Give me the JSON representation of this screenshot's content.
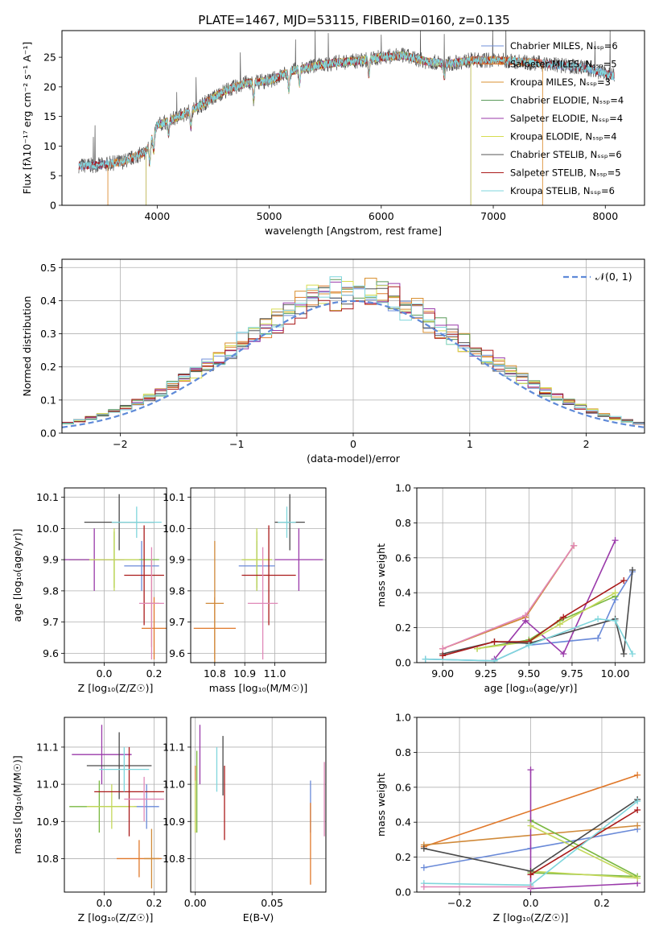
{
  "figure_title": "PLATE=1467, MJD=53115, FIBERID=0160, z=0.135",
  "colors": {
    "spec": [
      "#6f8fd8",
      "#dd7a2a",
      "#d99030",
      "#5a9a5a",
      "#9a3aaa",
      "#d6dc50",
      "#555555",
      "#aa1a1a",
      "#7fd6dc"
    ],
    "err": [
      "#6a8ad8",
      "#e0782a",
      "#d08a3a",
      "#7ab840",
      "#9a3aaa",
      "#c4d85a",
      "#4a4a4a",
      "#aa1a1a",
      "#7fd6dc",
      "#e088b8"
    ],
    "gauss": "#5f8ad8"
  },
  "chart_data": [
    {
      "id": "spectrum",
      "type": "line",
      "xlabel": "wavelength [Angstrom, rest frame]",
      "ylabel": "Flux [fλ10⁻¹⁷ erg cm⁻² s⁻¹ A⁻¹]",
      "xlim": [
        3150,
        8350
      ],
      "ylim": [
        0,
        29.5
      ],
      "xticks": [
        4000,
        5000,
        6000,
        7000,
        8000
      ],
      "yticks": [
        0,
        5,
        10,
        15,
        20,
        25
      ],
      "legend_position": "top-right",
      "legend": [
        "Chabrier MILES, Nₛₛₚ=6",
        "Salpeter MILES, Nₛₛₚ=5",
        "Kroupa MILES, Nₛₛₚ=3",
        "Chabrier ELODIE, Nₛₛₚ=4",
        "Salpeter ELODIE, Nₛₛₚ=4",
        "Kroupa ELODIE, Nₛₛₚ=4",
        "Chabrier STELIB, Nₛₛₚ=6",
        "Salpeter STELIB, Nₛₛₚ=5",
        "Kroupa STELIB, Nₛₛₚ=6"
      ],
      "continuum": {
        "x": [
          3330,
          3500,
          3700,
          3900,
          4000,
          4200,
          4400,
          4600,
          4800,
          5000,
          5200,
          5400,
          5600,
          5800,
          6000,
          6200,
          6400,
          6600,
          6800,
          7000,
          7200,
          7400,
          7600,
          7800,
          8080
        ],
        "y": [
          6.7,
          6.8,
          7.4,
          9.0,
          13.5,
          15.0,
          17.0,
          19.3,
          20.7,
          21.0,
          22.7,
          23.5,
          24.1,
          24.4,
          25.0,
          25.3,
          24.3,
          23.9,
          24.5,
          24.5,
          24.3,
          24.0,
          23.6,
          23.3,
          21.8
        ]
      },
      "model_ranges": [
        [
          3300,
          8080
        ],
        [
          3560,
          7440
        ],
        [
          3560,
          7440
        ],
        [
          3900,
          6800
        ],
        [
          3900,
          6800
        ],
        [
          3900,
          6800
        ],
        [
          3300,
          8080
        ],
        [
          3300,
          8080
        ],
        [
          3300,
          8080
        ]
      ]
    },
    {
      "id": "residuals",
      "type": "histogram",
      "xlabel": "(data-model)/error",
      "ylabel": "Normed distribution",
      "xlim": [
        -2.5,
        2.5
      ],
      "ylim": [
        0,
        0.525
      ],
      "xticks": [
        -2,
        -1,
        0,
        1,
        2
      ],
      "yticks": [
        0.0,
        0.1,
        0.2,
        0.3,
        0.4,
        0.5
      ],
      "legend": [
        "𝒩(0, 1)"
      ],
      "legend_position": "top-right",
      "bin_width": 0.1,
      "gaussian": {
        "mean": 0,
        "sigma": 1
      }
    },
    {
      "id": "age-vs-Z",
      "type": "errorbar",
      "xlabel": "Z [log₁₀(Z/Z☉)]",
      "ylabel": "age  [log₁₀(age/yr)]",
      "xlim": [
        -0.16,
        0.25
      ],
      "ylim": [
        9.57,
        10.13
      ],
      "xticks": [
        0.0,
        0.2
      ],
      "yticks": [
        9.6,
        9.7,
        9.8,
        9.9,
        10.0,
        10.1
      ],
      "points": [
        {
          "x": 0.15,
          "xerr": 0.07,
          "y": 9.88,
          "yerr": 0.08
        },
        {
          "x": 0.2,
          "xerr": 0.05,
          "y": 9.68,
          "yerr": 0.1
        },
        {
          "x": 0.19,
          "xerr": 0.03,
          "y": 9.76,
          "yerr": 0.14
        },
        {
          "x": 0.04,
          "xerr": 0.18,
          "y": 9.9,
          "yerr": 0.09
        },
        {
          "x": -0.04,
          "xerr": 0.12,
          "y": 9.9,
          "yerr": 0.1
        },
        {
          "x": 0.04,
          "xerr": 0.1,
          "y": 9.9,
          "yerr": 0.1
        },
        {
          "x": 0.06,
          "xerr": 0.14,
          "y": 10.02,
          "yerr": 0.09
        },
        {
          "x": 0.16,
          "xerr": 0.08,
          "y": 9.85,
          "yerr": 0.16
        },
        {
          "x": 0.13,
          "xerr": 0.1,
          "y": 10.02,
          "yerr": 0.05
        },
        {
          "x": 0.19,
          "xerr": 0.05,
          "y": 9.76,
          "yerr": 0.18
        }
      ]
    },
    {
      "id": "age-vs-mass",
      "type": "errorbar",
      "xlabel": "mass [log₁₀(M/M☉)]",
      "ylabel": "",
      "xlim": [
        10.72,
        11.17
      ],
      "ylim": [
        9.57,
        10.13
      ],
      "xticks": [
        10.8,
        10.9,
        11.0
      ],
      "yticks": [
        9.6,
        9.7,
        9.8,
        9.9,
        10.0,
        10.1
      ],
      "points": [
        {
          "x": 10.94,
          "xerr": 0.06,
          "y": 9.88,
          "yerr": 0.08
        },
        {
          "x": 10.8,
          "xerr": 0.07,
          "y": 9.68,
          "yerr": 0.1
        },
        {
          "x": 10.8,
          "xerr": 0.03,
          "y": 9.76,
          "yerr": 0.2
        },
        {
          "x": 10.94,
          "xerr": 0.05,
          "y": 9.9,
          "yerr": 0.09
        },
        {
          "x": 11.08,
          "xerr": 0.08,
          "y": 9.9,
          "yerr": 0.1
        },
        {
          "x": 10.94,
          "xerr": 0.05,
          "y": 9.9,
          "yerr": 0.1
        },
        {
          "x": 11.05,
          "xerr": 0.05,
          "y": 10.02,
          "yerr": 0.09
        },
        {
          "x": 10.98,
          "xerr": 0.09,
          "y": 9.85,
          "yerr": 0.16
        },
        {
          "x": 11.04,
          "xerr": 0.03,
          "y": 10.02,
          "yerr": 0.05
        },
        {
          "x": 10.96,
          "xerr": 0.05,
          "y": 9.76,
          "yerr": 0.18
        }
      ]
    },
    {
      "id": "massweight-vs-age",
      "type": "line",
      "xlabel": "age  [log₁₀(age/yr)]",
      "ylabel": "mass weight",
      "xlim": [
        8.85,
        10.17
      ],
      "ylim": [
        0,
        1
      ],
      "xticks": [
        9.0,
        9.25,
        9.5,
        9.75,
        10.0
      ],
      "yticks": [
        0.0,
        0.2,
        0.4,
        0.6,
        0.8,
        1.0
      ],
      "series": [
        {
          "x": [
            8.9,
            9.3,
            9.5,
            9.9,
            10.0,
            10.1
          ],
          "y": [
            0.02,
            0.01,
            0.1,
            0.14,
            0.36,
            0.52
          ]
        },
        {
          "x": [
            9.0,
            9.48,
            9.76
          ],
          "y": [
            0.08,
            0.26,
            0.67
          ]
        },
        {
          "x": [
            9.0,
            9.48,
            9.76
          ],
          "y": [
            0.08,
            0.26,
            0.67
          ]
        },
        {
          "x": [
            9.2,
            9.5,
            9.68,
            10.0
          ],
          "y": [
            0.08,
            0.13,
            0.24,
            0.38
          ]
        },
        {
          "x": [
            9.3,
            9.48,
            9.7,
            10.0
          ],
          "y": [
            0.02,
            0.24,
            0.05,
            0.7
          ]
        },
        {
          "x": [
            9.2,
            9.5,
            9.68,
            10.0
          ],
          "y": [
            0.08,
            0.12,
            0.22,
            0.4
          ]
        },
        {
          "x": [
            9.0,
            9.3,
            9.5,
            10.0,
            10.05,
            10.1
          ],
          "y": [
            0.05,
            0.12,
            0.11,
            0.25,
            0.05,
            0.53
          ]
        },
        {
          "x": [
            9.0,
            9.3,
            9.5,
            9.7,
            10.05
          ],
          "y": [
            0.04,
            0.12,
            0.12,
            0.26,
            0.47
          ]
        },
        {
          "x": [
            8.9,
            9.3,
            9.5,
            9.9,
            10.0,
            10.1
          ],
          "y": [
            0.02,
            0.01,
            0.1,
            0.25,
            0.24,
            0.05
          ]
        },
        {
          "x": [
            9.0,
            9.48,
            9.76
          ],
          "y": [
            0.08,
            0.27,
            0.67
          ]
        }
      ]
    },
    {
      "id": "mass-vs-Z",
      "type": "errorbar",
      "xlabel": "Z [log₁₀(Z/Z☉)]",
      "ylabel": "mass [log₁₀(M/M☉)]",
      "xlim": [
        -0.16,
        0.25
      ],
      "ylim": [
        10.71,
        11.18
      ],
      "xticks": [
        0.0,
        0.2
      ],
      "yticks": [
        10.8,
        10.9,
        11.0,
        11.1
      ],
      "points": [
        {
          "x": 0.17,
          "xerr": 0.05,
          "y": 10.94,
          "yerr": 0.06
        },
        {
          "x": 0.14,
          "xerr": 0.09,
          "y": 10.8,
          "yerr": 0.05
        },
        {
          "x": 0.19,
          "xerr": 0.03,
          "y": 10.8,
          "yerr": 0.08
        },
        {
          "x": -0.02,
          "xerr": 0.12,
          "y": 10.94,
          "yerr": 0.07
        },
        {
          "x": -0.01,
          "xerr": 0.12,
          "y": 11.08,
          "yerr": 0.08
        },
        {
          "x": 0.03,
          "xerr": 0.1,
          "y": 10.94,
          "yerr": 0.06
        },
        {
          "x": 0.06,
          "xerr": 0.13,
          "y": 11.05,
          "yerr": 0.09
        },
        {
          "x": 0.1,
          "xerr": 0.14,
          "y": 10.98,
          "yerr": 0.12
        },
        {
          "x": 0.08,
          "xerr": 0.1,
          "y": 11.04,
          "yerr": 0.06
        },
        {
          "x": 0.16,
          "xerr": 0.08,
          "y": 10.96,
          "yerr": 0.06
        }
      ]
    },
    {
      "id": "mass-vs-ebv",
      "type": "errorbar",
      "xlabel": "E(B-V)",
      "ylabel": "",
      "xlim": [
        -0.003,
        0.085
      ],
      "ylim": [
        10.71,
        11.18
      ],
      "xticks": [
        0.0,
        0.05
      ],
      "yticks": [
        10.8,
        10.9,
        11.0,
        11.1
      ],
      "points": [
        {
          "x": 0.075,
          "y": 10.94,
          "yerr": 0.07
        },
        {
          "x": 0.075,
          "y": 10.84,
          "yerr": 0.11
        },
        {
          "x": 0.0,
          "y": 10.96,
          "yerr": 0.09
        },
        {
          "x": 0.001,
          "y": 10.98,
          "yerr": 0.11
        },
        {
          "x": 0.003,
          "y": 11.08,
          "yerr": 0.08
        },
        {
          "x": 0.0,
          "y": 10.94,
          "yerr": 0.07
        },
        {
          "x": 0.018,
          "y": 11.05,
          "yerr": 0.08
        },
        {
          "x": 0.019,
          "y": 10.95,
          "yerr": 0.1
        },
        {
          "x": 0.014,
          "y": 11.04,
          "yerr": 0.06
        },
        {
          "x": 0.084,
          "y": 10.96,
          "yerr": 0.1
        }
      ]
    },
    {
      "id": "massweight-vs-Z",
      "type": "line",
      "xlabel": "Z [log₁₀(Z/Z☉)]",
      "ylabel": "mass weight",
      "xlim": [
        -0.32,
        0.32
      ],
      "ylim": [
        0,
        1
      ],
      "xticks": [
        -0.2,
        0.0,
        0.2
      ],
      "yticks": [
        0.0,
        0.2,
        0.4,
        0.6,
        0.8,
        1.0
      ],
      "series": [
        {
          "x": [
            -0.3,
            0.0,
            0.3
          ],
          "y": [
            0.14,
            0.25,
            0.36
          ]
        },
        {
          "x": [
            -0.3,
            0.3
          ],
          "y": [
            0.26,
            0.67
          ]
        },
        {
          "x": [
            -0.3,
            0.3
          ],
          "y": [
            0.27,
            0.38
          ]
        },
        {
          "x": [
            0.0,
            0.3,
            0.0
          ],
          "y": [
            0.41,
            0.09,
            0.11
          ]
        },
        {
          "x": [
            0.0,
            0.0,
            0.3
          ],
          "y": [
            0.7,
            0.02,
            0.05
          ]
        },
        {
          "x": [
            0.0,
            0.3,
            0.0
          ],
          "y": [
            0.38,
            0.08,
            0.12
          ]
        },
        {
          "x": [
            -0.3,
            0.0,
            0.3
          ],
          "y": [
            0.25,
            0.12,
            0.53
          ]
        },
        {
          "x": [
            0.0,
            0.3
          ],
          "y": [
            0.1,
            0.47
          ]
        },
        {
          "x": [
            -0.3,
            0.0,
            0.3
          ],
          "y": [
            0.05,
            0.04,
            0.52
          ]
        },
        {
          "x": [
            -0.3,
            0.0
          ],
          "y": [
            0.03,
            0.03
          ]
        }
      ]
    }
  ]
}
